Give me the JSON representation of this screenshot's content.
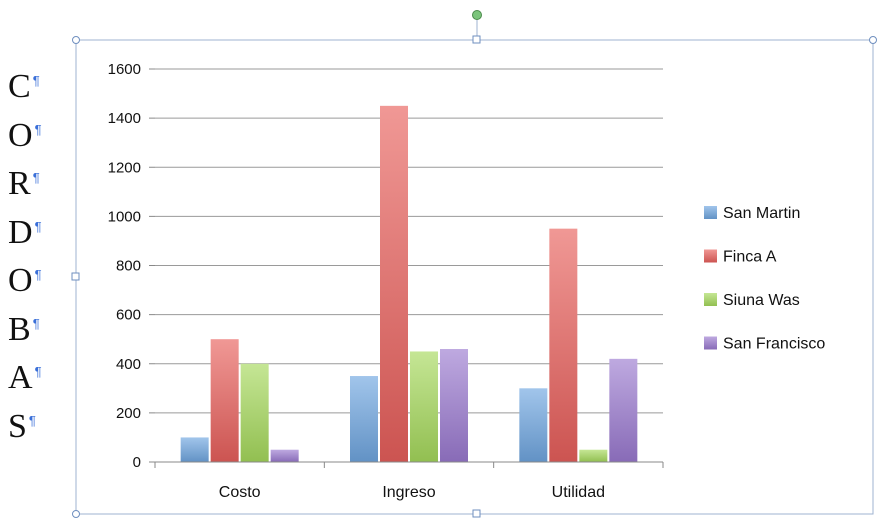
{
  "side_text": {
    "letters": [
      "C",
      "O",
      "R",
      "D",
      "O",
      "B",
      "A",
      "S"
    ],
    "pilcrow": "¶"
  },
  "chart_data": {
    "type": "bar",
    "categories": [
      "Costo",
      "Ingreso",
      "Utilidad"
    ],
    "series": [
      {
        "name": "San Martin",
        "color": "#6fa6e0",
        "values": [
          100,
          350,
          300
        ]
      },
      {
        "name": "Finca A",
        "color": "#e8605c",
        "values": [
          500,
          1450,
          950
        ]
      },
      {
        "name": "Siuna Was",
        "color": "#a6d95c",
        "values": [
          400,
          450,
          50
        ]
      },
      {
        "name": "San Francisco",
        "color": "#9b7ad0",
        "values": [
          50,
          460,
          420
        ]
      }
    ],
    "ylim": [
      0,
      1600
    ],
    "yticks": [
      0,
      200,
      400,
      600,
      800,
      1000,
      1200,
      1400,
      1600
    ],
    "grid": true,
    "legend": "right",
    "title": "",
    "xlabel": "",
    "ylabel": ""
  }
}
